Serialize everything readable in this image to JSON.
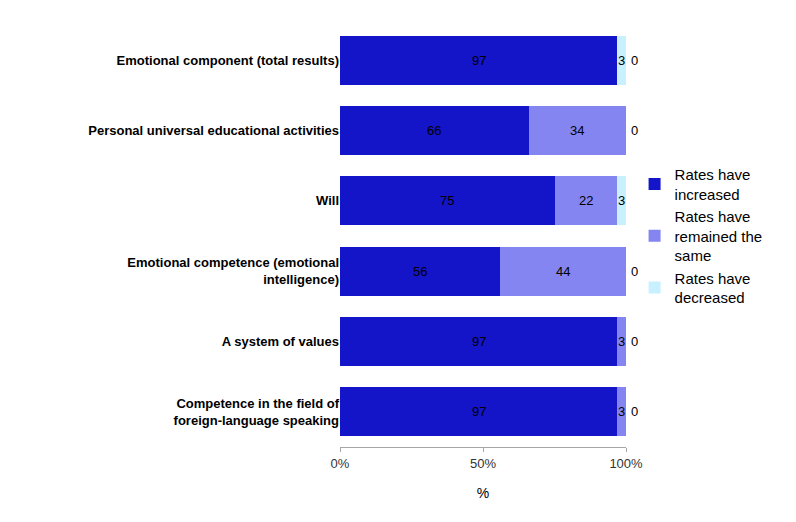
{
  "chart_data": {
    "type": "bar",
    "orientation": "horizontal",
    "stacked": true,
    "data_labels": true,
    "grid": false,
    "legend": "right",
    "categories": [
      "Emotional component (total results)",
      "Personal universal educational activities",
      "Will",
      "Emotional competence (emotional intelligence)",
      "A system of values",
      "Competence in the field of foreign-language speaking"
    ],
    "series": [
      {
        "name": "Rates have increased",
        "color": "#1414c8",
        "values": [
          97,
          66,
          75,
          56,
          97,
          97
        ]
      },
      {
        "name": "Rates have remained the same",
        "color": "#8585f2",
        "values": [
          0,
          34,
          22,
          44,
          3,
          3
        ]
      },
      {
        "name": "Rates have decreased",
        "color": "#c8f0ff",
        "values": [
          3,
          0,
          3,
          0,
          0,
          0
        ]
      }
    ],
    "x_label": "%",
    "xlim": [
      0,
      100
    ],
    "xticks": [
      {
        "value": 0,
        "label": "0%"
      },
      {
        "value": 50,
        "label": "50%"
      },
      {
        "value": 100,
        "label": "100%"
      }
    ]
  }
}
